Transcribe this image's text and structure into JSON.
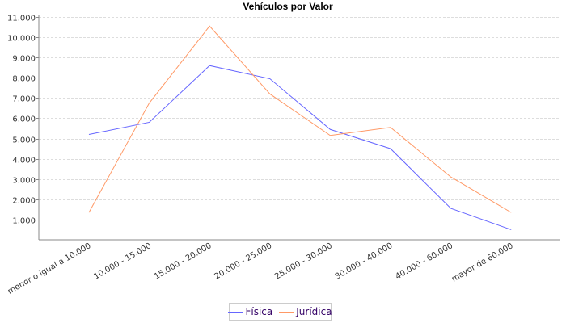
{
  "chart_data": {
    "type": "line",
    "title": "Vehículos por Valor",
    "xlabel": "",
    "ylabel": "",
    "categories": [
      "menor o igual a 10.000",
      "10.000 - 15.000",
      "15.000 - 20.000",
      "20.000 - 25.000",
      "25.000 - 30.000",
      "30.000 - 40.000",
      "40.000 - 60.000",
      "mayor de 60.000"
    ],
    "ylim": [
      0,
      11000
    ],
    "yticks": [
      1000,
      2000,
      3000,
      4000,
      5000,
      6000,
      7000,
      8000,
      9000,
      10000,
      11000
    ],
    "ytick_labels": [
      "1.000",
      "2.000",
      "3.000",
      "4.000",
      "5.000",
      "6.000",
      "7.000",
      "8.000",
      "9.000",
      "10.000",
      "11.000"
    ],
    "grid": true,
    "legend_position": "bottom",
    "series": [
      {
        "name": "Física",
        "color": "#6666ff",
        "values": [
          5200,
          5800,
          8600,
          7950,
          5450,
          4500,
          1550,
          500
        ]
      },
      {
        "name": "Jurídica",
        "color": "#ff9966",
        "values": [
          1350,
          6750,
          10550,
          7200,
          5150,
          5550,
          3100,
          1350
        ]
      }
    ]
  }
}
